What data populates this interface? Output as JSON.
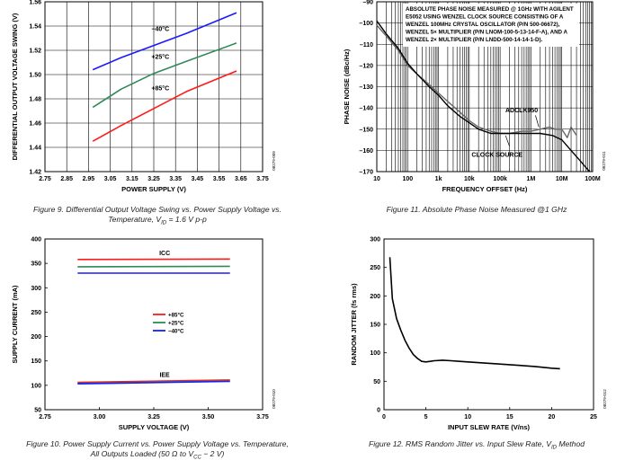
{
  "chart_data": [
    {
      "type": "line",
      "id": "fig9",
      "title": "",
      "xlabel": "POWER SUPPLY (V)",
      "ylabel": "DIFFERENTIAL OUTPUT VOLTAGE SWING (V)",
      "xlim": [
        2.75,
        3.75
      ],
      "ylim": [
        1.42,
        1.56
      ],
      "xticks": [
        "2.75",
        "2.85",
        "2.95",
        "3.05",
        "3.15",
        "3.25",
        "3.35",
        "3.45",
        "3.55",
        "3.65",
        "3.75"
      ],
      "yticks": [
        "1.42",
        "1.44",
        "1.46",
        "1.48",
        "1.50",
        "1.52",
        "1.54",
        "1.56"
      ],
      "grid": true,
      "figure_code": "08279-009",
      "colors": {
        "-40": "#1a1aff",
        "25": "#2e8b57",
        "85": "#ff1a1a"
      },
      "series": [
        {
          "name": "−40°C",
          "color": "#1a1aff",
          "x": [
            2.97,
            3.1,
            3.25,
            3.4,
            3.63
          ],
          "y": [
            1.504,
            1.514,
            1.524,
            1.534,
            1.551
          ]
        },
        {
          "name": "+25°C",
          "color": "#2e8b57",
          "x": [
            2.97,
            3.1,
            3.25,
            3.4,
            3.63
          ],
          "y": [
            1.473,
            1.488,
            1.501,
            1.511,
            1.526
          ]
        },
        {
          "name": "+85°C",
          "color": "#ff1a1a",
          "x": [
            2.97,
            3.1,
            3.25,
            3.4,
            3.63
          ],
          "y": [
            1.445,
            1.458,
            1.472,
            1.486,
            1.503
          ]
        }
      ],
      "labels": [
        {
          "text": "−40°C",
          "x": 3.28,
          "y": 1.536
        },
        {
          "text": "+25°C",
          "x": 3.28,
          "y": 1.513
        },
        {
          "text": "+85°C",
          "x": 3.28,
          "y": 1.487
        }
      ]
    },
    {
      "type": "line",
      "id": "fig11",
      "title": "",
      "xlabel": "FREQUENCY OFFSET (Hz)",
      "ylabel": "PHASE NOISE (dBc/Hz)",
      "xscale": "log",
      "xlim": [
        10,
        100000000
      ],
      "ylim": [
        -170,
        -90
      ],
      "xticks": [
        "10",
        "100",
        "1k",
        "10k",
        "100k",
        "1M",
        "10M",
        "100M"
      ],
      "yticks": [
        "–90",
        "–100",
        "–110",
        "–120",
        "–130",
        "–140",
        "–150",
        "–160",
        "–170"
      ],
      "grid": true,
      "figure_code": "08279-011",
      "annotation_lines": [
        "ABSOLUTE PHASE NOISE MEASURED @ 1GHz WITH AGILENT",
        "E5052 USING WENZEL CLOCK SOURCE CONSISTING OF A",
        "WENZEL 100MHz CRYSTAL OSCILLATOR (P/N 500-06672),",
        "WENZEL 5× MULTIPLIER (P/N LNOM-100-5-13-14-F-A), AND A",
        "WENZEL 2× MULTIPLIER (P/N LNDD-500-14-14-1-D)."
      ],
      "series": [
        {
          "name": "ADCLK950",
          "color": "#666666",
          "x": [
            10,
            20,
            50,
            100,
            200,
            500,
            1000,
            2000,
            5000,
            10000,
            20000,
            50000,
            100000,
            200000,
            500000,
            1000000,
            2000000,
            4000000,
            6000000,
            10000000,
            15000000,
            20000000,
            30000000
          ],
          "y": [
            -101,
            -106,
            -113,
            -120,
            -124,
            -129,
            -133,
            -137,
            -142,
            -146,
            -149,
            -151,
            -152,
            -152,
            -151,
            -151,
            -150,
            -149,
            -150,
            -150,
            -154,
            -149,
            -153
          ]
        },
        {
          "name": "CLOCK SOURCE",
          "color": "#000000",
          "x": [
            10,
            20,
            50,
            100,
            200,
            500,
            1000,
            2000,
            5000,
            10000,
            20000,
            50000,
            100000,
            200000,
            500000,
            1000000,
            2000000,
            5000000,
            10000000,
            20000000,
            40000000,
            60000000,
            80000000
          ],
          "y": [
            -99,
            -105,
            -112,
            -119,
            -124,
            -130,
            -134,
            -139,
            -144,
            -147,
            -150,
            -152,
            -152,
            -152,
            -152,
            -152,
            -152,
            -153,
            -155,
            -160,
            -165,
            -168,
            -170
          ]
        }
      ],
      "labels": [
        {
          "text": "ADCLK950",
          "x": 500000,
          "y": -142
        },
        {
          "text": "CLOCK SOURCE",
          "x": 80000,
          "y": -163
        }
      ]
    },
    {
      "type": "line",
      "id": "fig10",
      "title": "",
      "xlabel": "SUPPLY VOLTAGE (V)",
      "ylabel": "SUPPLY CURRENT (mA)",
      "xlim": [
        2.75,
        3.75
      ],
      "ylim": [
        50,
        400
      ],
      "xticks": [
        "2.75",
        "3.00",
        "3.25",
        "3.50",
        "3.75"
      ],
      "yticks": [
        "50",
        "100",
        "150",
        "200",
        "250",
        "300",
        "350",
        "400"
      ],
      "grid": false,
      "figure_code": "08279-010",
      "legend": [
        {
          "name": "+85°C",
          "color": "#ff1a1a"
        },
        {
          "name": "+25°C",
          "color": "#2e8b57"
        },
        {
          "name": "−40°C",
          "color": "#1a1aff"
        }
      ],
      "series": [
        {
          "name": "+85°C",
          "color": "#ff1a1a",
          "group": "ICC",
          "x": [
            2.9,
            3.6
          ],
          "y": [
            358,
            359
          ]
        },
        {
          "name": "+25°C",
          "color": "#2e8b57",
          "group": "ICC",
          "x": [
            2.9,
            3.6
          ],
          "y": [
            343,
            344
          ]
        },
        {
          "name": "−40°C",
          "color": "#1a1aff",
          "group": "ICC",
          "x": [
            2.9,
            3.6
          ],
          "y": [
            330,
            330
          ]
        },
        {
          "name": "+85°C",
          "color": "#ff1a1a",
          "group": "IEE",
          "x": [
            2.9,
            3.6
          ],
          "y": [
            106,
            111
          ]
        },
        {
          "name": "+25°C",
          "color": "#2e8b57",
          "group": "IEE",
          "x": [
            2.9,
            3.6
          ],
          "y": [
            104,
            109
          ]
        },
        {
          "name": "−40°C",
          "color": "#1a1aff",
          "group": "IEE",
          "x": [
            2.9,
            3.6
          ],
          "y": [
            103,
            108
          ]
        }
      ],
      "labels": [
        {
          "text": "ICC",
          "x": 3.3,
          "y": 367
        },
        {
          "text": "IEE",
          "x": 3.3,
          "y": 117
        }
      ]
    },
    {
      "type": "line",
      "id": "fig12",
      "title": "",
      "xlabel": "INPUT SLEW RATE (V/ns)",
      "ylabel": "RANDOM JITTER (fs rms)",
      "xlim": [
        0,
        25
      ],
      "ylim": [
        0,
        300
      ],
      "xticks": [
        "0",
        "5",
        "10",
        "15",
        "20",
        "25"
      ],
      "yticks": [
        "0",
        "50",
        "100",
        "150",
        "200",
        "250",
        "300"
      ],
      "grid": false,
      "figure_code": "08279-012",
      "series": [
        {
          "name": "",
          "color": "#000000",
          "x": [
            0.7,
            1.0,
            1.5,
            2.0,
            2.5,
            3.0,
            3.5,
            4.0,
            4.5,
            5.0,
            5.5,
            6.0,
            7.0,
            8.0,
            9.0,
            10,
            12,
            14,
            16,
            18,
            20,
            21
          ],
          "y": [
            268,
            195,
            160,
            140,
            122,
            108,
            97,
            90,
            85,
            84,
            85,
            86,
            87,
            86,
            85,
            84,
            82,
            80,
            78,
            76,
            73,
            72
          ]
        }
      ]
    }
  ],
  "captions": {
    "fig9_line1": "Figure 9. Differential Output Voltage Swing vs. Power Supply Voltage vs.",
    "fig9_line2_a": "Temperature, V",
    "fig9_line2_sub": "ID",
    "fig9_line2_b": " = 1.6 V p-p",
    "fig11": "Figure 11. Absolute Phase Noise Measured @1 GHz",
    "fig10_line1": "Figure 10. Power Supply Current vs. Power Supply Voltage vs. Temperature,",
    "fig10_line2_a": "All Outputs Loaded (50 Ω to V",
    "fig10_line2_sub": "CC",
    "fig10_line2_b": " − 2 V)",
    "fig12_a": "Figure 12. RMS Random Jitter vs. Input Slew Rate, V",
    "fig12_sub": "ID",
    "fig12_b": " Method"
  }
}
